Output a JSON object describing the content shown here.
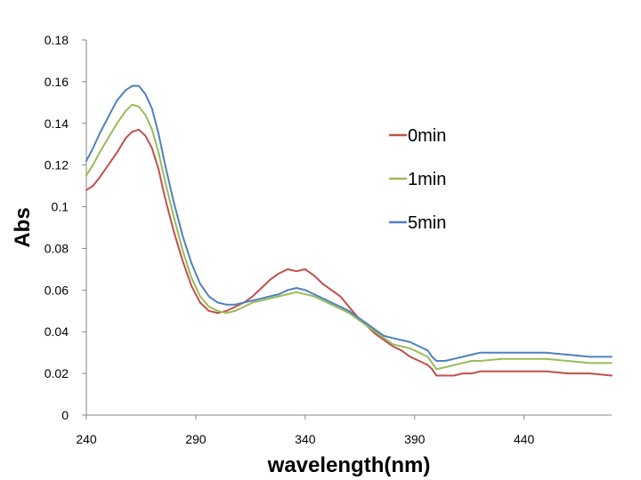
{
  "chart_data": {
    "type": "line",
    "title": "",
    "xlabel": "wavelength(nm)",
    "ylabel": "Abs",
    "xlim": [
      240,
      480
    ],
    "ylim": [
      0,
      0.18
    ],
    "x_ticks": [
      240,
      290,
      340,
      390,
      440
    ],
    "x_tick_labels": [
      "240",
      "290",
      "340",
      "390",
      "440"
    ],
    "y_ticks": [
      0,
      0.02,
      0.04,
      0.06,
      0.08,
      0.1,
      0.12,
      0.14,
      0.16,
      0.18
    ],
    "y_tick_labels": [
      "0",
      "0.02",
      "0.04",
      "0.06",
      "0.08",
      "0.1",
      "0.12",
      "0.14",
      "0.16",
      "0.18"
    ],
    "grid": false,
    "legend_position": "right-upper",
    "series": [
      {
        "name": "0min",
        "color": "#c0504d",
        "x": [
          240,
          243,
          246,
          250,
          254,
          258,
          261,
          264,
          267,
          270,
          273,
          276,
          280,
          284,
          288,
          292,
          296,
          300,
          304,
          308,
          312,
          316,
          320,
          324,
          328,
          332,
          336,
          340,
          344,
          348,
          352,
          356,
          360,
          364,
          368,
          372,
          376,
          380,
          384,
          388,
          392,
          396,
          398,
          400,
          404,
          408,
          412,
          416,
          420,
          430,
          440,
          450,
          460,
          470,
          480
        ],
        "y": [
          0.108,
          0.11,
          0.114,
          0.12,
          0.126,
          0.133,
          0.136,
          0.137,
          0.134,
          0.128,
          0.118,
          0.104,
          0.088,
          0.074,
          0.062,
          0.054,
          0.05,
          0.049,
          0.05,
          0.052,
          0.054,
          0.057,
          0.061,
          0.065,
          0.068,
          0.07,
          0.069,
          0.07,
          0.067,
          0.063,
          0.06,
          0.057,
          0.052,
          0.047,
          0.043,
          0.039,
          0.036,
          0.033,
          0.031,
          0.028,
          0.026,
          0.024,
          0.022,
          0.019,
          0.019,
          0.019,
          0.02,
          0.02,
          0.021,
          0.021,
          0.021,
          0.021,
          0.02,
          0.02,
          0.019
        ]
      },
      {
        "name": "1min",
        "color": "#9bbb59",
        "x": [
          240,
          243,
          246,
          250,
          254,
          258,
          261,
          264,
          267,
          270,
          273,
          276,
          280,
          284,
          288,
          292,
          296,
          300,
          304,
          308,
          312,
          316,
          320,
          324,
          328,
          332,
          336,
          340,
          344,
          348,
          352,
          356,
          360,
          364,
          368,
          372,
          376,
          380,
          384,
          388,
          392,
          396,
          398,
          400,
          404,
          408,
          412,
          416,
          420,
          430,
          440,
          450,
          460,
          470,
          480
        ],
        "y": [
          0.115,
          0.12,
          0.126,
          0.133,
          0.14,
          0.146,
          0.149,
          0.148,
          0.144,
          0.137,
          0.126,
          0.112,
          0.095,
          0.079,
          0.066,
          0.057,
          0.052,
          0.05,
          0.049,
          0.05,
          0.052,
          0.054,
          0.055,
          0.056,
          0.057,
          0.058,
          0.059,
          0.058,
          0.057,
          0.055,
          0.053,
          0.051,
          0.049,
          0.046,
          0.043,
          0.04,
          0.037,
          0.034,
          0.033,
          0.032,
          0.03,
          0.028,
          0.025,
          0.022,
          0.023,
          0.024,
          0.025,
          0.026,
          0.026,
          0.027,
          0.027,
          0.027,
          0.026,
          0.025,
          0.025
        ]
      },
      {
        "name": "5min",
        "color": "#4f81bd",
        "x": [
          240,
          243,
          246,
          250,
          254,
          258,
          261,
          264,
          267,
          270,
          273,
          276,
          280,
          284,
          288,
          292,
          296,
          300,
          304,
          308,
          312,
          316,
          320,
          324,
          328,
          332,
          336,
          340,
          344,
          348,
          352,
          356,
          360,
          364,
          368,
          372,
          376,
          380,
          384,
          388,
          392,
          396,
          398,
          400,
          404,
          408,
          412,
          416,
          420,
          430,
          440,
          450,
          460,
          470,
          480
        ],
        "y": [
          0.122,
          0.128,
          0.135,
          0.143,
          0.151,
          0.156,
          0.158,
          0.158,
          0.154,
          0.147,
          0.135,
          0.12,
          0.102,
          0.086,
          0.073,
          0.063,
          0.057,
          0.054,
          0.053,
          0.053,
          0.054,
          0.055,
          0.056,
          0.057,
          0.058,
          0.06,
          0.061,
          0.06,
          0.058,
          0.056,
          0.054,
          0.052,
          0.05,
          0.047,
          0.044,
          0.041,
          0.038,
          0.037,
          0.036,
          0.035,
          0.033,
          0.031,
          0.028,
          0.026,
          0.026,
          0.027,
          0.028,
          0.029,
          0.03,
          0.03,
          0.03,
          0.03,
          0.029,
          0.028,
          0.028
        ]
      }
    ]
  }
}
